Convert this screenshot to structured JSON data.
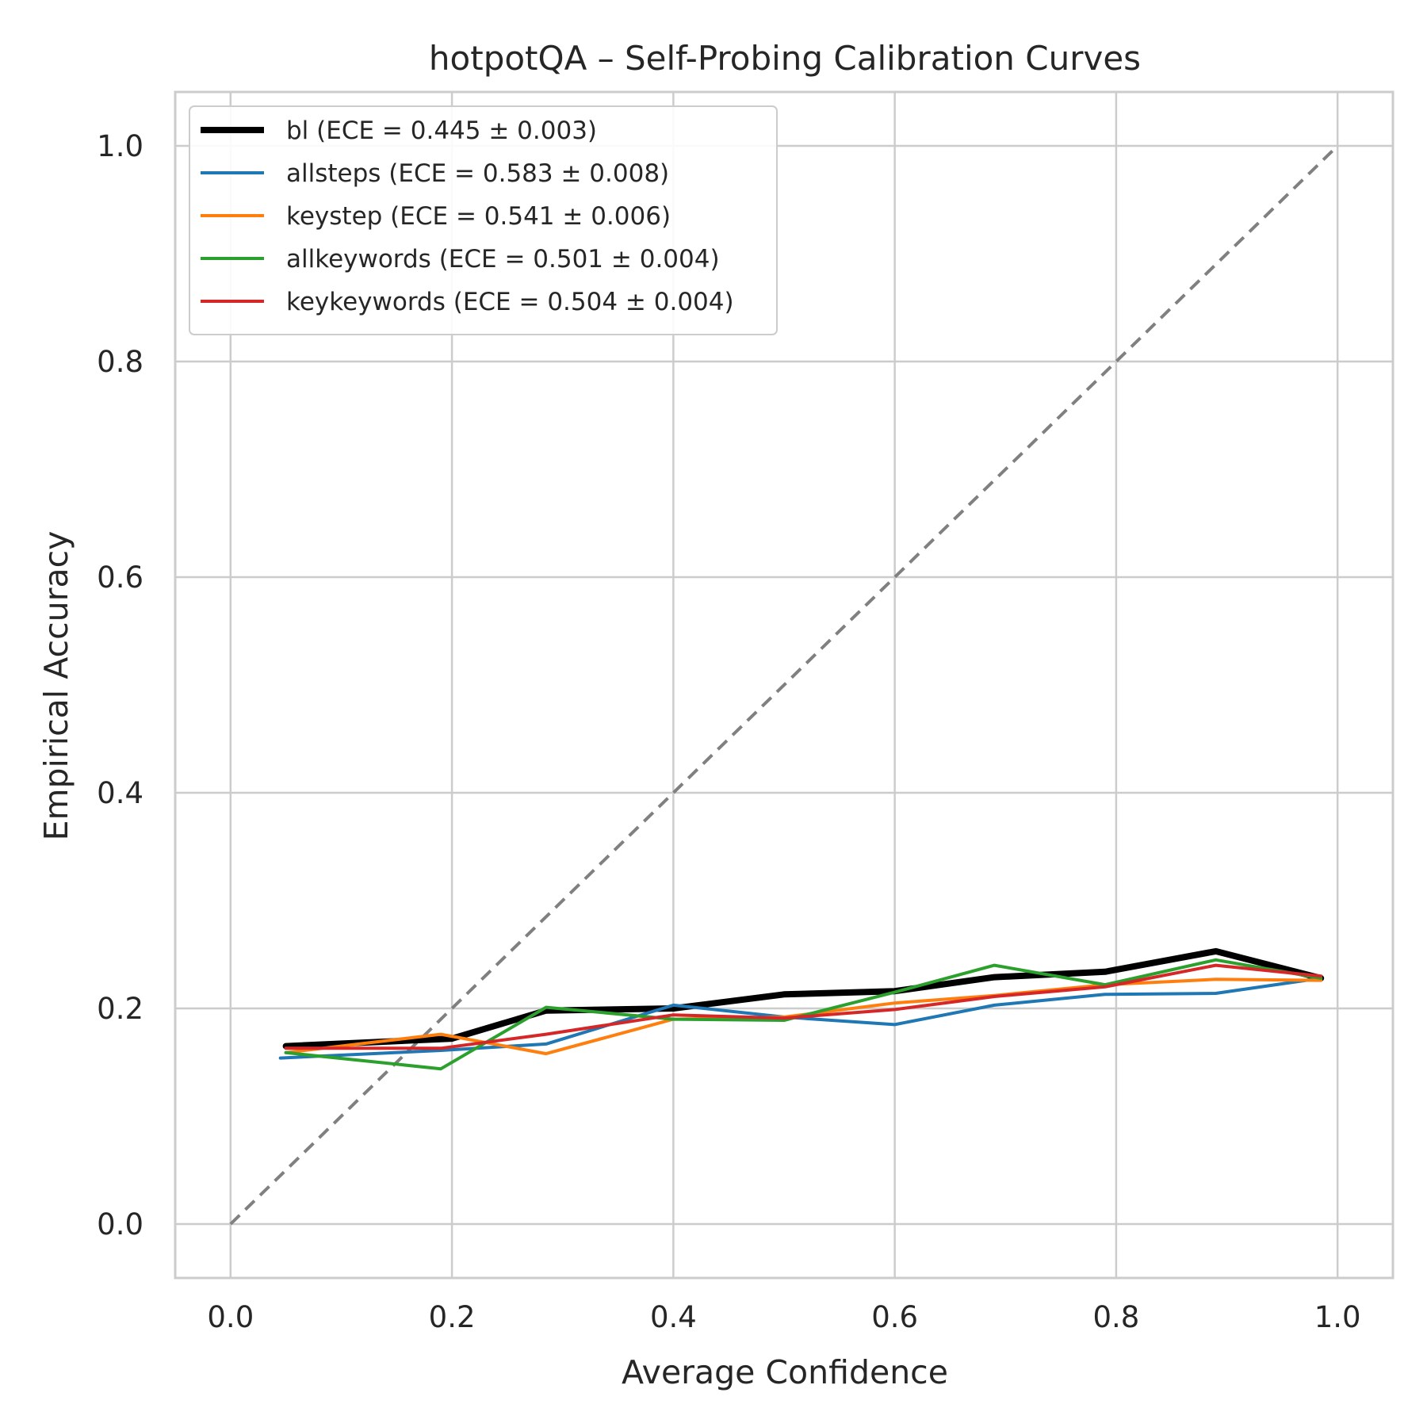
{
  "chart_data": {
    "type": "line",
    "title": "hotpotQA – Self-Probing Calibration Curves",
    "xlabel": "Average Confidence",
    "ylabel": "Empirical Accuracy",
    "xlim": [
      -0.05,
      1.05
    ],
    "ylim": [
      -0.05,
      1.05
    ],
    "xticks": [
      "0.0",
      "0.2",
      "0.4",
      "0.6",
      "0.8",
      "1.0"
    ],
    "yticks": [
      "0.0",
      "0.2",
      "0.4",
      "0.6",
      "0.8",
      "1.0"
    ],
    "grid": true,
    "legend_position": "upper-left",
    "reference_line": {
      "x": [
        0,
        1
      ],
      "y": [
        0,
        1
      ],
      "style": "dashed",
      "color": "#808080"
    },
    "series": [
      {
        "name": "bl (ECE = 0.445 ± 0.003)",
        "color": "#000000",
        "x": [
          0.05,
          0.2,
          0.285,
          0.4,
          0.5,
          0.6,
          0.69,
          0.79,
          0.89,
          0.985
        ],
        "y": [
          0.165,
          0.172,
          0.198,
          0.2,
          0.213,
          0.216,
          0.229,
          0.234,
          0.253,
          0.228
        ]
      },
      {
        "name": "allsteps (ECE = 0.583 ± 0.008)",
        "color": "#1f77b4",
        "x": [
          0.045,
          0.19,
          0.285,
          0.4,
          0.5,
          0.6,
          0.69,
          0.79,
          0.89,
          0.985
        ],
        "y": [
          0.154,
          0.161,
          0.167,
          0.203,
          0.192,
          0.185,
          0.203,
          0.213,
          0.214,
          0.228
        ]
      },
      {
        "name": "keystep (ECE = 0.541 ± 0.006)",
        "color": "#ff7f0e",
        "x": [
          0.05,
          0.19,
          0.285,
          0.4,
          0.5,
          0.6,
          0.69,
          0.79,
          0.89,
          0.985
        ],
        "y": [
          0.159,
          0.176,
          0.158,
          0.19,
          0.192,
          0.205,
          0.212,
          0.222,
          0.227,
          0.226
        ]
      },
      {
        "name": "allkeywords (ECE = 0.501 ± 0.004)",
        "color": "#2ca02c",
        "x": [
          0.05,
          0.19,
          0.285,
          0.4,
          0.5,
          0.6,
          0.69,
          0.79,
          0.89,
          0.985
        ],
        "y": [
          0.159,
          0.144,
          0.201,
          0.19,
          0.189,
          0.215,
          0.24,
          0.222,
          0.245,
          0.228
        ]
      },
      {
        "name": "keykeywords (ECE = 0.504 ± 0.004)",
        "color": "#d62728",
        "x": [
          0.05,
          0.19,
          0.285,
          0.4,
          0.5,
          0.6,
          0.69,
          0.79,
          0.89,
          0.985
        ],
        "y": [
          0.163,
          0.163,
          0.176,
          0.194,
          0.191,
          0.199,
          0.211,
          0.22,
          0.24,
          0.23
        ]
      }
    ]
  }
}
